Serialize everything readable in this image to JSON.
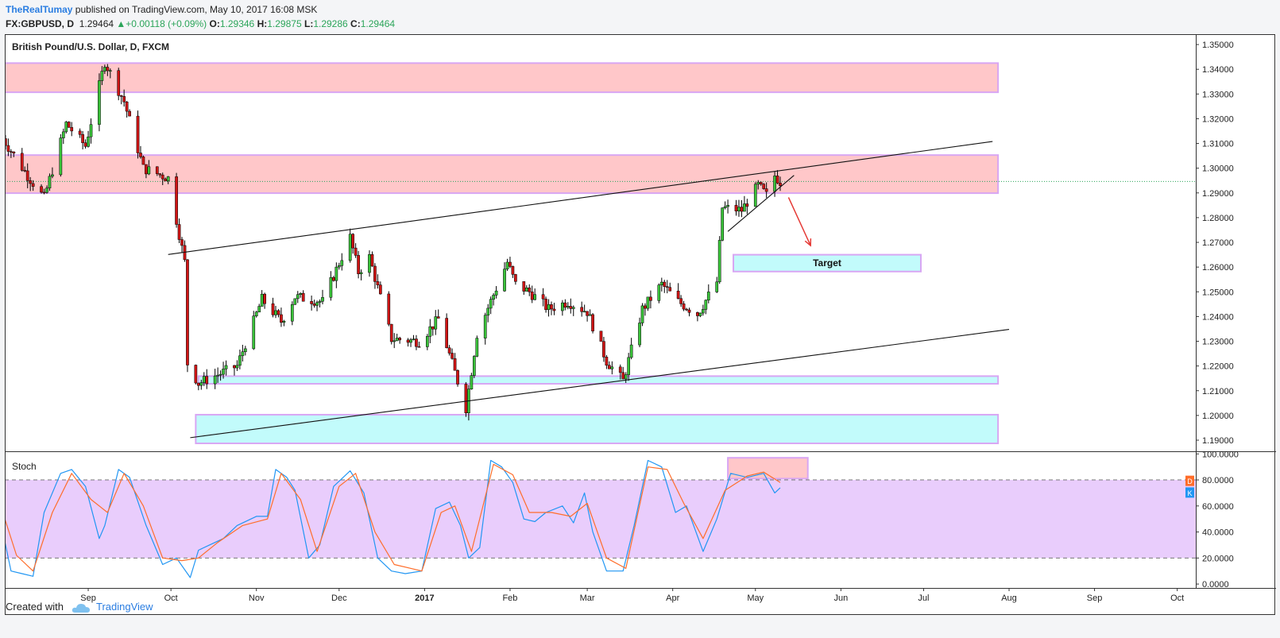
{
  "header": {
    "author": "TheRealTumay",
    "published": " published on TradingView.com, May 10, 2017 16:08 MSK",
    "symbol": "FX:GBPUSD, D",
    "last": "1.29464",
    "change": "▲+0.00118 (+0.09%)",
    "o_label": "O:",
    "o": "1.29346",
    "h_label": "H:",
    "h": "1.29875",
    "l_label": "L:",
    "l": "1.29286",
    "c_label": "C:",
    "c": "1.29464"
  },
  "footer": {
    "created_with": "Created with",
    "brand": "TradingView"
  },
  "colors": {
    "up": "#3ac23a",
    "down": "#d01515",
    "resistance_zone": "#ffc7c9",
    "support_zone": "#c2fbfb",
    "zone_border": "#d8a6f3",
    "stoch_band": "#e9cdfc",
    "stoch_k": "#2196f3",
    "stoch_d": "#ff6d2a",
    "current_price_line": "#2ca55a",
    "target_arrow": "#e53935"
  },
  "chart_data": [
    {
      "type": "candlestick",
      "title": "British Pound/U.S. Dollar, D, FXCM",
      "x": [
        "Sep",
        "Oct",
        "Nov",
        "Dec",
        "2017",
        "Feb",
        "Mar",
        "Apr",
        "May",
        "Jun",
        "Jul",
        "Aug",
        "Sep",
        "Oct"
      ],
      "x_range": [
        "2016-08-01",
        "2017-10-31"
      ],
      "y_ticks": [
        "1.35000",
        "1.34000",
        "1.33000",
        "1.32000",
        "1.31000",
        "1.30000",
        "1.29000",
        "1.28000",
        "1.27000",
        "1.26000",
        "1.25000",
        "1.24000",
        "1.23000",
        "1.22000",
        "1.21000",
        "1.20000",
        "1.19000"
      ],
      "ylim": [
        1.1855,
        1.3542
      ],
      "current_price": 1.29464,
      "candle_points": [
        [
          "2016-08-01",
          1.312
        ],
        [
          "2016-08-10",
          1.297
        ],
        [
          "2016-08-16",
          1.288
        ],
        [
          "2016-08-24",
          1.318
        ],
        [
          "2016-08-31",
          1.309
        ],
        [
          "2016-09-07",
          1.343
        ],
        [
          "2016-09-14",
          1.327
        ],
        [
          "2016-09-21",
          1.3
        ],
        [
          "2016-09-30",
          1.296
        ],
        [
          "2016-10-06",
          1.262
        ],
        [
          "2016-10-07",
          1.221
        ],
        [
          "2016-10-11",
          1.213
        ],
        [
          "2016-10-25",
          1.22
        ],
        [
          "2016-11-03",
          1.247
        ],
        [
          "2016-11-10",
          1.238
        ],
        [
          "2016-11-15",
          1.248
        ],
        [
          "2016-11-25",
          1.246
        ],
        [
          "2016-12-05",
          1.272
        ],
        [
          "2016-12-08",
          1.258
        ],
        [
          "2016-12-12",
          1.264
        ],
        [
          "2016-12-20",
          1.231
        ],
        [
          "2016-12-30",
          1.23
        ],
        [
          "2017-01-06",
          1.239
        ],
        [
          "2017-01-16",
          1.203
        ],
        [
          "2017-01-20",
          1.233
        ],
        [
          "2017-01-31",
          1.262
        ],
        [
          "2017-02-03",
          1.253
        ],
        [
          "2017-02-08",
          1.25
        ],
        [
          "2017-02-15",
          1.243
        ],
        [
          "2017-02-22",
          1.246
        ],
        [
          "2017-03-01",
          1.242
        ],
        [
          "2017-03-08",
          1.222
        ],
        [
          "2017-03-14",
          1.214
        ],
        [
          "2017-03-21",
          1.243
        ],
        [
          "2017-03-28",
          1.253
        ],
        [
          "2017-04-03",
          1.246
        ],
        [
          "2017-04-10",
          1.241
        ],
        [
          "2017-04-17",
          1.254
        ],
        [
          "2017-04-19",
          1.284
        ],
        [
          "2017-04-26",
          1.283
        ],
        [
          "2017-05-02",
          1.293
        ],
        [
          "2017-05-05",
          1.289
        ],
        [
          "2017-05-08",
          1.297
        ],
        [
          "2017-05-10",
          1.2946
        ]
      ],
      "zones": [
        {
          "kind": "resistance",
          "from": 1.3307,
          "to": 1.3425,
          "x_start": "2016-08-01",
          "x_end": "2017-07-28"
        },
        {
          "kind": "resistance",
          "from": 1.2899,
          "to": 1.3053,
          "x_start": "2016-08-01",
          "x_end": "2017-07-28"
        },
        {
          "kind": "support",
          "from": 1.2128,
          "to": 1.2159,
          "x_start": "2016-10-11",
          "x_end": "2017-07-28"
        },
        {
          "kind": "support",
          "from": 1.1887,
          "to": 1.2003,
          "x_start": "2016-10-10",
          "x_end": "2017-07-28"
        }
      ],
      "trendlines": [
        {
          "from": [
            "2016-09-30",
            1.2651
          ],
          "to": [
            "2017-07-26",
            1.3108
          ]
        },
        {
          "from": [
            "2016-10-08",
            1.191
          ],
          "to": [
            "2017-08-01",
            1.2348
          ]
        },
        {
          "from": [
            "2017-04-21",
            1.2744
          ],
          "to": [
            "2017-05-15",
            1.2971
          ]
        }
      ],
      "annotations": [
        {
          "type": "box",
          "text": "Target",
          "from": 1.2582,
          "to": 1.265,
          "x_start": "2017-04-23",
          "x_end": "2017-06-30"
        },
        {
          "type": "arrow",
          "from": [
            "2017-05-13",
            1.2882
          ],
          "to": [
            "2017-05-21",
            1.2687
          ]
        }
      ]
    },
    {
      "type": "line",
      "title": "Stoch",
      "y_ticks": [
        "100.0000",
        "80.0000",
        "60.0000",
        "40.0000",
        "20.0000",
        "0.0000"
      ],
      "ylim": [
        -3,
        102
      ],
      "bands": [
        20,
        80
      ],
      "highlight": {
        "from": 81,
        "to": 97,
        "x_start": "2017-04-21",
        "x_end": "2017-05-20"
      },
      "markers": [
        {
          "label": "D"
        },
        {
          "label": "K"
        }
      ],
      "series": [
        {
          "name": "K",
          "points": [
            [
              "2016-08-01",
              40
            ],
            [
              "2016-08-04",
              10
            ],
            [
              "2016-08-08",
              8
            ],
            [
              "2016-08-12",
              6
            ],
            [
              "2016-08-16",
              55
            ],
            [
              "2016-08-22",
              85
            ],
            [
              "2016-08-26",
              88
            ],
            [
              "2016-08-31",
              75
            ],
            [
              "2016-09-05",
              35
            ],
            [
              "2016-09-07",
              45
            ],
            [
              "2016-09-12",
              88
            ],
            [
              "2016-09-16",
              82
            ],
            [
              "2016-09-22",
              45
            ],
            [
              "2016-09-28",
              15
            ],
            [
              "2016-10-03",
              20
            ],
            [
              "2016-10-08",
              5
            ],
            [
              "2016-10-11",
              26
            ],
            [
              "2016-10-15",
              30
            ],
            [
              "2016-10-20",
              35
            ],
            [
              "2016-10-25",
              45
            ],
            [
              "2016-11-01",
              52
            ],
            [
              "2016-11-05",
              52
            ],
            [
              "2016-11-08",
              88
            ],
            [
              "2016-11-12",
              82
            ],
            [
              "2016-11-15",
              72
            ],
            [
              "2016-11-20",
              20
            ],
            [
              "2016-11-24",
              30
            ],
            [
              "2016-11-29",
              75
            ],
            [
              "2016-12-05",
              87
            ],
            [
              "2016-12-10",
              70
            ],
            [
              "2016-12-15",
              20
            ],
            [
              "2016-12-20",
              10
            ],
            [
              "2016-12-25",
              8
            ],
            [
              "2016-12-31",
              10
            ],
            [
              "2017-01-05",
              58
            ],
            [
              "2017-01-10",
              63
            ],
            [
              "2017-01-14",
              45
            ],
            [
              "2017-01-17",
              20
            ],
            [
              "2017-01-21",
              28
            ],
            [
              "2017-01-25",
              95
            ],
            [
              "2017-01-29",
              90
            ],
            [
              "2017-02-02",
              78
            ],
            [
              "2017-02-06",
              50
            ],
            [
              "2017-02-10",
              48
            ],
            [
              "2017-02-14",
              55
            ],
            [
              "2017-02-20",
              60
            ],
            [
              "2017-02-24",
              47
            ],
            [
              "2017-02-28",
              70
            ],
            [
              "2017-03-03",
              40
            ],
            [
              "2017-03-08",
              10
            ],
            [
              "2017-03-14",
              10
            ],
            [
              "2017-03-18",
              45
            ],
            [
              "2017-03-23",
              95
            ],
            [
              "2017-03-28",
              90
            ],
            [
              "2017-04-02",
              55
            ],
            [
              "2017-04-06",
              60
            ],
            [
              "2017-04-12",
              25
            ],
            [
              "2017-04-17",
              50
            ],
            [
              "2017-04-22",
              85
            ],
            [
              "2017-04-28",
              82
            ],
            [
              "2017-05-04",
              85
            ],
            [
              "2017-05-08",
              70
            ],
            [
              "2017-05-10",
              74
            ]
          ]
        },
        {
          "name": "D",
          "points": [
            [
              "2016-08-01",
              55
            ],
            [
              "2016-08-06",
              22
            ],
            [
              "2016-08-12",
              10
            ],
            [
              "2016-08-19",
              55
            ],
            [
              "2016-08-26",
              85
            ],
            [
              "2016-09-02",
              65
            ],
            [
              "2016-09-08",
              55
            ],
            [
              "2016-09-14",
              85
            ],
            [
              "2016-09-21",
              60
            ],
            [
              "2016-09-28",
              20
            ],
            [
              "2016-10-05",
              18
            ],
            [
              "2016-10-11",
              20
            ],
            [
              "2016-10-18",
              32
            ],
            [
              "2016-10-27",
              45
            ],
            [
              "2016-11-05",
              50
            ],
            [
              "2016-11-10",
              85
            ],
            [
              "2016-11-17",
              65
            ],
            [
              "2016-11-23",
              25
            ],
            [
              "2016-12-01",
              75
            ],
            [
              "2016-12-07",
              85
            ],
            [
              "2016-12-14",
              40
            ],
            [
              "2016-12-21",
              15
            ],
            [
              "2016-12-31",
              10
            ],
            [
              "2017-01-07",
              55
            ],
            [
              "2017-01-12",
              60
            ],
            [
              "2017-01-18",
              25
            ],
            [
              "2017-01-26",
              92
            ],
            [
              "2017-02-02",
              84
            ],
            [
              "2017-02-08",
              55
            ],
            [
              "2017-02-16",
              55
            ],
            [
              "2017-02-23",
              52
            ],
            [
              "2017-03-01",
              62
            ],
            [
              "2017-03-08",
              20
            ],
            [
              "2017-03-15",
              12
            ],
            [
              "2017-03-23",
              90
            ],
            [
              "2017-03-30",
              88
            ],
            [
              "2017-04-05",
              62
            ],
            [
              "2017-04-12",
              35
            ],
            [
              "2017-04-20",
              72
            ],
            [
              "2017-04-28",
              83
            ],
            [
              "2017-05-04",
              86
            ],
            [
              "2017-05-10",
              78
            ]
          ]
        }
      ]
    }
  ]
}
